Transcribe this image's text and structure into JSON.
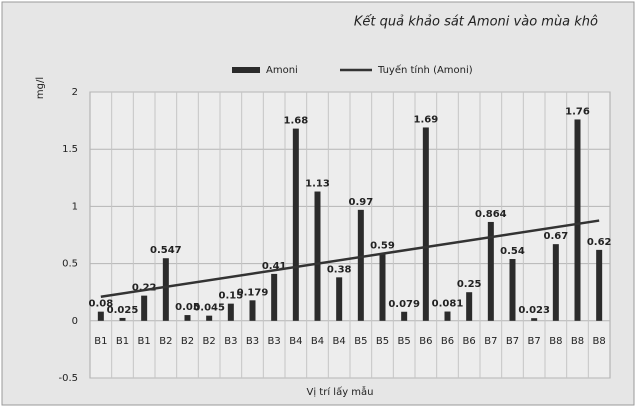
{
  "chart_data": {
    "type": "bar",
    "title": "Kết quả khảo sát Amoni vào mùa khô",
    "y_label": "mg/l",
    "x_label": "Vị trí lấy mẫu",
    "categories": [
      "B1",
      "B1",
      "B1",
      "B2",
      "B2",
      "B2",
      "B3",
      "B3",
      "B3",
      "B4",
      "B4",
      "B4",
      "B5",
      "B5",
      "B5",
      "B6",
      "B6",
      "B6",
      "B7",
      "B7",
      "B7",
      "B8",
      "B8",
      "B8"
    ],
    "series": [
      {
        "name": "Amoni",
        "color": "#2b2b2b",
        "values": [
          0.08,
          0.025,
          0.22,
          0.547,
          0.05,
          0.045,
          0.15,
          0.179,
          0.41,
          1.68,
          1.13,
          0.38,
          0.97,
          0.59,
          0.079,
          1.69,
          0.081,
          0.25,
          0.864,
          0.54,
          0.023,
          0.67,
          1.76,
          0.62
        ]
      }
    ],
    "trendline": {
      "name": "Tuyến tính (Amoni)",
      "color": "#333333"
    },
    "ylim": [
      -0.5,
      2
    ],
    "yticks": [
      -0.5,
      0,
      0.5,
      1,
      1.5,
      2
    ],
    "grid": true,
    "legend": "top"
  }
}
